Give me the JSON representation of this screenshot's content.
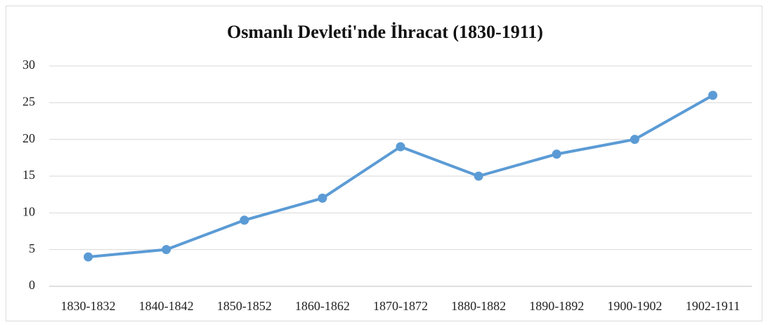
{
  "chart_data": {
    "type": "line",
    "title": "Osmanlı Devleti'nde İhracat (1830-1911)",
    "categories": [
      "1830-1832",
      "1840-1842",
      "1850-1852",
      "1860-1862",
      "1870-1872",
      "1880-1882",
      "1890-1892",
      "1900-1902",
      "1902-1911"
    ],
    "values": [
      4,
      5,
      9,
      12,
      19,
      15,
      18,
      20,
      26
    ],
    "color": "#5b9bd5",
    "ylim": [
      0,
      30
    ],
    "yticks": [
      0,
      5,
      10,
      15,
      20,
      25,
      30
    ],
    "grid": true
  }
}
